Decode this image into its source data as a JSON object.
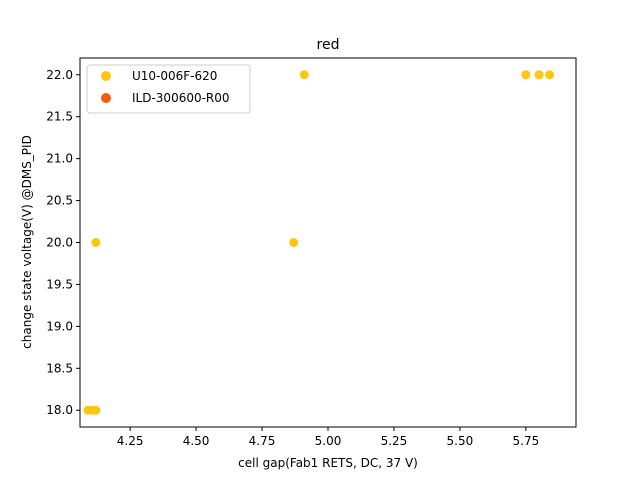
{
  "chart_data": {
    "type": "scatter",
    "title": "red",
    "xlabel": "cell gap(Fab1 RETS, DC, 37 V)",
    "ylabel": "change state voltage(V) @DMS_PID",
    "xlim": [
      4.06,
      5.94
    ],
    "ylim": [
      17.8,
      22.2
    ],
    "xticks": [
      4.25,
      4.5,
      4.75,
      5.0,
      5.25,
      5.5,
      5.75
    ],
    "xtick_labels": [
      "4.25",
      "4.50",
      "4.75",
      "5.00",
      "5.25",
      "5.50",
      "5.75"
    ],
    "yticks": [
      18.0,
      18.5,
      19.0,
      19.5,
      20.0,
      20.5,
      21.0,
      21.5,
      22.0
    ],
    "ytick_labels": [
      "18.0",
      "18.5",
      "19.0",
      "19.5",
      "20.0",
      "20.5",
      "21.0",
      "21.5",
      "22.0"
    ],
    "grid": false,
    "legend_position": "top-left",
    "series": [
      {
        "name": "U10-006F-620",
        "color": "#ffc50f",
        "points": [
          {
            "x": 4.09,
            "y": 18.0
          },
          {
            "x": 4.11,
            "y": 18.0
          },
          {
            "x": 4.12,
            "y": 18.0
          },
          {
            "x": 4.12,
            "y": 20.0
          },
          {
            "x": 4.87,
            "y": 20.0
          },
          {
            "x": 4.91,
            "y": 22.0
          },
          {
            "x": 5.75,
            "y": 22.0
          },
          {
            "x": 5.8,
            "y": 22.0
          },
          {
            "x": 5.84,
            "y": 22.0
          }
        ]
      },
      {
        "name": "ILD-300600-R00",
        "color": "#ff5a0a",
        "points": []
      }
    ]
  }
}
